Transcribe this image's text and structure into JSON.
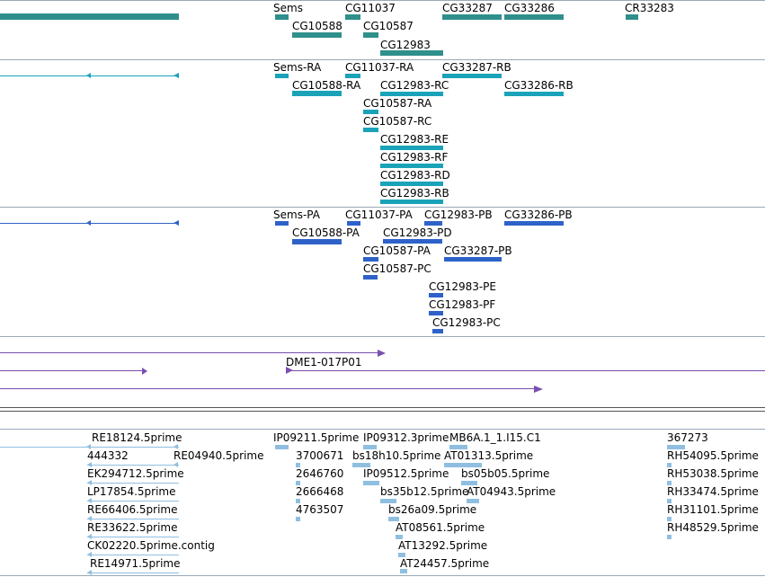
{
  "colors": {
    "gene": "#2f8f8b",
    "transcript": "#1aa3b8",
    "protein": "#2e62c8",
    "alignment": "#7a4fb0",
    "est": "#8fbfe0"
  },
  "gene_track": {
    "labels": [
      "Sems",
      "CG11037",
      "CG33287",
      "CG33286",
      "CR33283",
      "CG10588",
      "CG10587",
      "CG12983"
    ]
  },
  "transcript_track": {
    "labels": [
      "Sems-RA",
      "CG11037-RA",
      "CG33287-RB",
      "CG10588-RA",
      "CG12983-RC",
      "CG33286-RB",
      "CG10587-RA",
      "CG10587-RC",
      "CG12983-RE",
      "CG12983-RF",
      "CG12983-RD",
      "CG12983-RB"
    ]
  },
  "protein_track": {
    "labels": [
      "Sems-PA",
      "CG11037-PA",
      "CG12983-PB",
      "CG33286-PB",
      "CG10588-PA",
      "CG12983-PD",
      "CG10587-PA",
      "CG33287-PB",
      "CG10587-PC",
      "CG12983-PE",
      "CG12983-PF",
      "CG12983-PC"
    ]
  },
  "alignment_track": {
    "labels": [
      "DME1-017P01"
    ]
  },
  "est_track": {
    "labels": [
      "RE18124.5prime",
      "IP09211.5prime",
      "IP09312.3prime",
      "MB6A.1_1.I15.C1",
      "367273",
      "444332",
      "RE04940.5prime",
      "3700671",
      "bs18h10.5prime",
      "AT01313.5prime",
      "RH54095.5prime",
      "EK294712.5prime",
      "2646760",
      "IP09512.5prime",
      "bs05b05.5prime",
      "RH53038.5prime",
      "LP17854.5prime",
      "2666468",
      "bs35b12.5prime",
      "AT04943.5prime",
      "RH33474.5prime",
      "RE66406.5prime",
      "4763507",
      "bs26a09.5prime",
      "RH31101.5prime",
      "RE33622.5prime",
      "AT08561.5prime",
      "RH48529.5prime",
      "CK02220.5prime.contig",
      "AT13292.5prime",
      "RE14971.5prime",
      "AT24457.5prime"
    ]
  }
}
